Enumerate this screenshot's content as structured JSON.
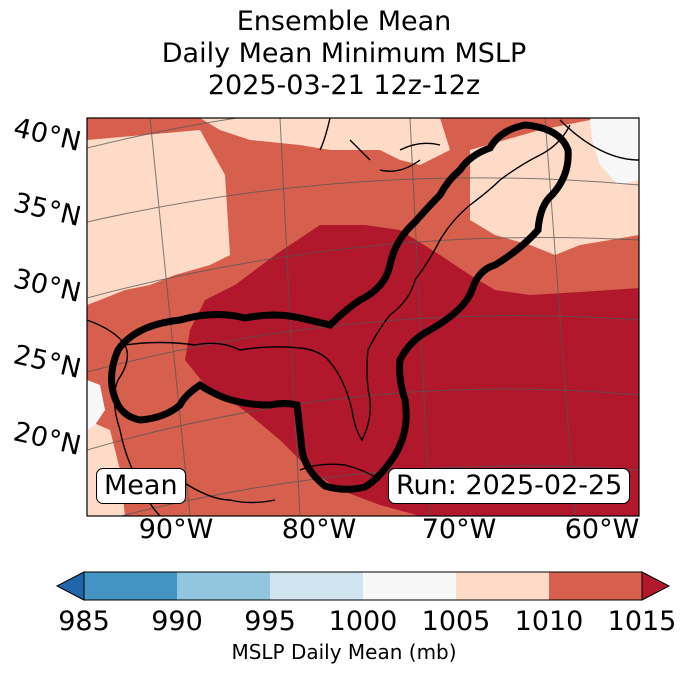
{
  "title": {
    "line1": "Ensemble Mean",
    "line2": "Daily Mean Minimum MSLP",
    "line3": "2025-03-21 12z-12z"
  },
  "map": {
    "latitude_labels": [
      "40°N",
      "35°N",
      "30°N",
      "25°N",
      "20°N"
    ],
    "longitude_labels": [
      "90°W",
      "80°W",
      "70°W",
      "60°W"
    ],
    "mean_box": "Mean",
    "run_box": "Run: 2025-02-25",
    "fill_colors": {
      "lt_1000_1005": "#f7f7f7",
      "1005_1010": "#fddbc7",
      "1010_1015": "#d6604d",
      "gt_1015": "#b2182b"
    }
  },
  "colorbar": {
    "ticks": [
      "985",
      "990",
      "995",
      "1000",
      "1005",
      "1010",
      "1015"
    ],
    "label": "MSLP Daily Mean (mb)",
    "colors": [
      "#2166ac",
      "#4393c3",
      "#92c5de",
      "#d1e5f0",
      "#f7f7f7",
      "#fddbc7",
      "#d6604d",
      "#b2182b"
    ]
  }
}
